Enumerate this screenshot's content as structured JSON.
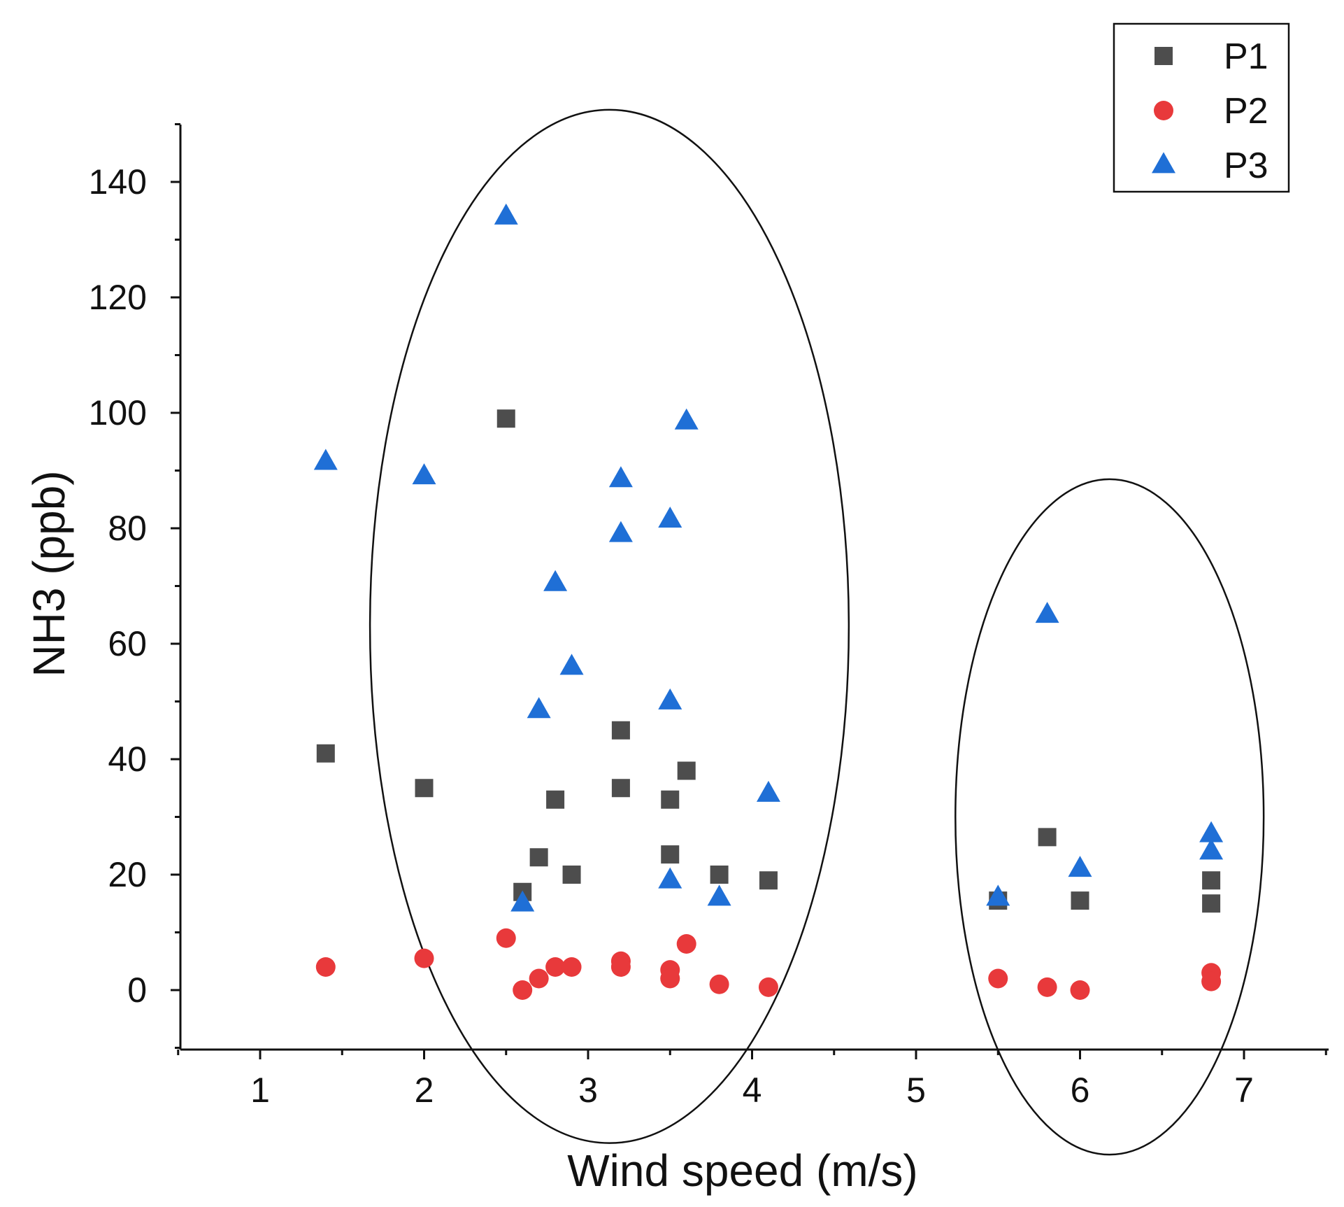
{
  "chart_data": {
    "type": "scatter",
    "title": "",
    "xlabel": "Wind speed (m/s)",
    "ylabel": "NH3 (ppb)",
    "xlim": [
      0.5,
      7.5
    ],
    "ylim": [
      -10,
      150
    ],
    "xticks": [
      1,
      2,
      3,
      4,
      5,
      6,
      7
    ],
    "yticks": [
      0,
      20,
      40,
      60,
      80,
      100,
      120,
      140
    ],
    "grid": false,
    "legend_position": "top-right",
    "series": [
      {
        "name": "P1",
        "marker": "square",
        "color": "#4d4d4d",
        "points": [
          [
            1.4,
            41
          ],
          [
            2.0,
            35
          ],
          [
            2.5,
            99
          ],
          [
            2.6,
            17
          ],
          [
            2.7,
            23
          ],
          [
            2.8,
            33
          ],
          [
            2.9,
            20
          ],
          [
            3.2,
            45
          ],
          [
            3.2,
            35
          ],
          [
            3.5,
            33
          ],
          [
            3.5,
            23.5
          ],
          [
            3.6,
            38
          ],
          [
            3.8,
            20
          ],
          [
            4.1,
            19
          ],
          [
            5.5,
            15.5
          ],
          [
            5.8,
            26.5
          ],
          [
            6.0,
            15.5
          ],
          [
            6.8,
            19
          ],
          [
            6.8,
            15
          ]
        ]
      },
      {
        "name": "P2",
        "marker": "circle",
        "color": "#e8393b",
        "points": [
          [
            1.4,
            4
          ],
          [
            2.0,
            5.5
          ],
          [
            2.5,
            9
          ],
          [
            2.6,
            0
          ],
          [
            2.7,
            2
          ],
          [
            2.8,
            4
          ],
          [
            2.9,
            4
          ],
          [
            3.2,
            5
          ],
          [
            3.2,
            4
          ],
          [
            3.5,
            3.5
          ],
          [
            3.5,
            2
          ],
          [
            3.6,
            8
          ],
          [
            3.8,
            1
          ],
          [
            4.1,
            0.5
          ],
          [
            5.5,
            2
          ],
          [
            5.8,
            0.5
          ],
          [
            6.0,
            0
          ],
          [
            6.8,
            3
          ],
          [
            6.8,
            1.5
          ]
        ]
      },
      {
        "name": "P3",
        "marker": "triangle",
        "color": "#1f6fd6",
        "points": [
          [
            1.4,
            91.5
          ],
          [
            2.0,
            89
          ],
          [
            2.5,
            134
          ],
          [
            2.6,
            15
          ],
          [
            2.7,
            48.5
          ],
          [
            2.8,
            70.5
          ],
          [
            2.9,
            56
          ],
          [
            3.2,
            88.5
          ],
          [
            3.2,
            79
          ],
          [
            3.5,
            81.5
          ],
          [
            3.5,
            50
          ],
          [
            3.5,
            19
          ],
          [
            3.6,
            98.5
          ],
          [
            3.8,
            16
          ],
          [
            4.1,
            34
          ],
          [
            5.5,
            16
          ],
          [
            5.8,
            65
          ],
          [
            6.0,
            21
          ],
          [
            6.8,
            27
          ],
          [
            6.8,
            24
          ]
        ]
      }
    ],
    "annotations": [
      {
        "type": "ellipse",
        "description": "cluster ellipse",
        "center": [
          3.13,
          63
        ],
        "radius_x": 1.46,
        "radius_y": 89.5
      },
      {
        "type": "ellipse",
        "description": "cluster ellipse",
        "center": [
          6.18,
          30
        ],
        "radius_x": 0.94,
        "radius_y": 58.5
      }
    ]
  }
}
